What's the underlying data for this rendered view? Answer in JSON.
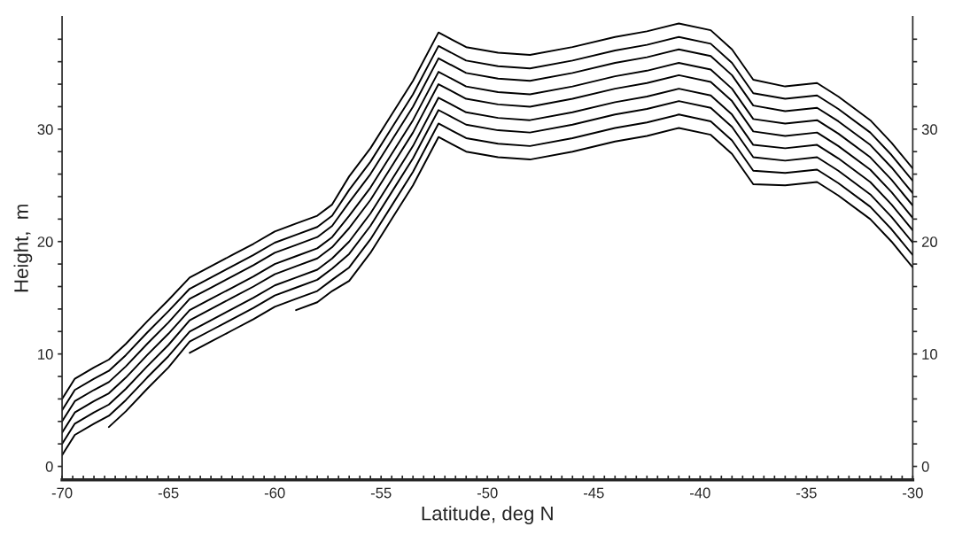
{
  "chart_data": {
    "type": "line",
    "xlabel": "Latitude, deg N",
    "ylabel": "Height,  m",
    "x": [
      -70,
      -69.4,
      -68.5,
      -67.8,
      -67,
      -66,
      -65,
      -64,
      -63,
      -62,
      -61,
      -60,
      -59,
      -58,
      -57.3,
      -56.5,
      -55.5,
      -54.5,
      -53.5,
      -52.3,
      -51,
      -49.5,
      -48,
      -46,
      -44,
      -42.5,
      -41,
      -39.5,
      -38.5,
      -37.5,
      -36,
      -34.5,
      -33.5,
      -32,
      -31,
      -30
    ],
    "series": [
      {
        "color": "#000000",
        "values": [
          null,
          null,
          null,
          null,
          null,
          null,
          null,
          null,
          null,
          null,
          null,
          null,
          13.9,
          14.6,
          15.6,
          16.5,
          19.0,
          22.0,
          25.0,
          29.3,
          28.0,
          27.5,
          27.3,
          28.0,
          28.9,
          29.4,
          30.1,
          29.5,
          27.8,
          25.1,
          25.0,
          25.3,
          24.1,
          22.0,
          20.0,
          17.7
        ]
      },
      {
        "color": "#000000",
        "values": [
          null,
          null,
          null,
          null,
          null,
          null,
          null,
          10.1,
          11.1,
          12.1,
          13.1,
          14.2,
          14.9,
          15.6,
          16.6,
          17.7,
          20.2,
          23.2,
          26.2,
          30.5,
          29.2,
          28.7,
          28.5,
          29.2,
          30.1,
          30.6,
          31.3,
          30.7,
          29.0,
          26.3,
          26.1,
          26.4,
          25.2,
          23.1,
          21.1,
          18.8
        ]
      },
      {
        "color": "#000000",
        "values": [
          null,
          null,
          null,
          3.5,
          4.9,
          6.9,
          8.8,
          11.1,
          12.1,
          13.1,
          14.1,
          15.2,
          15.9,
          16.6,
          17.6,
          18.9,
          21.4,
          24.4,
          27.4,
          31.7,
          30.4,
          29.9,
          29.7,
          30.4,
          31.3,
          31.8,
          32.5,
          31.9,
          30.2,
          27.5,
          27.2,
          27.5,
          26.3,
          24.2,
          22.2,
          19.9
        ]
      },
      {
        "color": "#000000",
        "values": [
          1.0,
          2.8,
          3.8,
          4.5,
          5.9,
          7.9,
          9.8,
          12.0,
          13.0,
          14.0,
          15.0,
          16.1,
          16.8,
          17.5,
          18.5,
          20.0,
          22.5,
          25.5,
          28.5,
          32.8,
          31.5,
          31.0,
          30.8,
          31.5,
          32.4,
          32.9,
          33.6,
          33.0,
          31.3,
          28.6,
          28.3,
          28.6,
          27.4,
          25.3,
          23.3,
          21.0
        ]
      },
      {
        "color": "#000000",
        "values": [
          2.0,
          3.8,
          4.8,
          5.5,
          6.9,
          8.9,
          10.8,
          13.0,
          14.0,
          15.0,
          16.0,
          17.1,
          17.8,
          18.5,
          19.5,
          21.2,
          23.7,
          26.7,
          29.7,
          34.0,
          32.7,
          32.2,
          32.0,
          32.7,
          33.6,
          34.1,
          34.8,
          34.2,
          32.5,
          29.8,
          29.4,
          29.7,
          28.5,
          26.4,
          24.4,
          22.1
        ]
      },
      {
        "color": "#000000",
        "values": [
          3.0,
          4.8,
          5.8,
          6.5,
          7.9,
          9.9,
          11.8,
          13.9,
          14.9,
          15.9,
          16.9,
          18.0,
          18.7,
          19.4,
          20.4,
          22.3,
          24.8,
          27.8,
          30.8,
          35.1,
          33.8,
          33.3,
          33.1,
          33.8,
          34.7,
          35.2,
          35.9,
          35.3,
          33.6,
          30.9,
          30.5,
          30.8,
          29.6,
          27.5,
          25.5,
          23.2
        ]
      },
      {
        "color": "#000000",
        "values": [
          4.0,
          5.8,
          6.8,
          7.5,
          8.9,
          10.9,
          12.8,
          14.9,
          15.9,
          16.9,
          17.9,
          19.0,
          19.7,
          20.4,
          21.4,
          23.5,
          26.0,
          29.0,
          32.0,
          36.3,
          35.0,
          34.5,
          34.3,
          35.0,
          35.9,
          36.4,
          37.1,
          36.5,
          34.8,
          32.1,
          31.6,
          31.9,
          30.7,
          28.6,
          26.6,
          24.3
        ]
      },
      {
        "color": "#000000",
        "values": [
          5.0,
          6.8,
          7.8,
          8.5,
          9.9,
          11.9,
          13.8,
          15.8,
          16.8,
          17.8,
          18.8,
          19.9,
          20.6,
          21.3,
          22.3,
          24.6,
          27.1,
          30.1,
          33.1,
          37.4,
          36.1,
          35.6,
          35.4,
          36.1,
          37.0,
          37.5,
          38.2,
          37.6,
          35.9,
          33.2,
          32.7,
          33.0,
          31.8,
          29.7,
          27.7,
          25.4
        ]
      },
      {
        "color": "#000000",
        "values": [
          6.0,
          7.8,
          8.8,
          9.5,
          10.9,
          12.9,
          14.8,
          16.8,
          17.8,
          18.8,
          19.8,
          20.9,
          21.6,
          22.3,
          23.3,
          25.8,
          28.3,
          31.3,
          34.3,
          38.6,
          37.3,
          36.8,
          36.6,
          37.3,
          38.2,
          38.7,
          39.4,
          38.8,
          37.1,
          34.4,
          33.8,
          34.1,
          32.9,
          30.8,
          28.8,
          26.5
        ]
      }
    ],
    "xlim": [
      -70,
      -30
    ],
    "ylim": [
      -1.2,
      40
    ],
    "y2lim": [
      -1.2,
      40
    ],
    "xticks": [
      -70,
      {
        "value": -69.5,
        "label": null
      },
      {
        "value": -69,
        "label": null
      },
      {
        "value": -68.5,
        "label": null
      },
      {
        "value": -68,
        "label": null
      },
      {
        "value": -67.5,
        "label": null
      },
      {
        "value": -67,
        "label": null
      },
      {
        "value": -66.5,
        "label": null
      },
      {
        "value": -66,
        "label": null
      },
      {
        "value": -65.5,
        "label": null
      },
      -65,
      {
        "value": -64.5,
        "label": null
      },
      {
        "value": -64,
        "label": null
      },
      {
        "value": -63.5,
        "label": null
      },
      {
        "value": -63,
        "label": null
      },
      {
        "value": -62.5,
        "label": null
      },
      {
        "value": -62,
        "label": null
      },
      {
        "value": -61.5,
        "label": null
      },
      {
        "value": -61,
        "label": null
      },
      {
        "value": -60.5,
        "label": null
      },
      -60,
      {
        "value": -59.5,
        "label": null
      },
      {
        "value": -59,
        "label": null
      },
      {
        "value": -58.5,
        "label": null
      },
      {
        "value": -58,
        "label": null
      },
      {
        "value": -57.5,
        "label": null
      },
      {
        "value": -57,
        "label": null
      },
      {
        "value": -56.5,
        "label": null
      },
      {
        "value": -56,
        "label": null
      },
      {
        "value": -55.5,
        "label": null
      },
      -55,
      {
        "value": -54.5,
        "label": null
      },
      {
        "value": -54,
        "label": null
      },
      {
        "value": -53.5,
        "label": null
      },
      {
        "value": -53,
        "label": null
      },
      {
        "value": -52.5,
        "label": null
      },
      {
        "value": -52,
        "label": null
      },
      {
        "value": -51.5,
        "label": null
      },
      {
        "value": -51,
        "label": null
      },
      {
        "value": -50.5,
        "label": null
      },
      -50,
      {
        "value": -49.5,
        "label": null
      },
      {
        "value": -49,
        "label": null
      },
      {
        "value": -48.5,
        "label": null
      },
      {
        "value": -48,
        "label": null
      },
      {
        "value": -47.5,
        "label": null
      },
      {
        "value": -47,
        "label": null
      },
      {
        "value": -46.5,
        "label": null
      },
      {
        "value": -46,
        "label": null
      },
      {
        "value": -45.5,
        "label": null
      },
      -45,
      {
        "value": -44.5,
        "label": null
      },
      {
        "value": -44,
        "label": null
      },
      {
        "value": -43.5,
        "label": null
      },
      {
        "value": -43,
        "label": null
      },
      {
        "value": -42.5,
        "label": null
      },
      {
        "value": -42,
        "label": null
      },
      {
        "value": -41.5,
        "label": null
      },
      {
        "value": -41,
        "label": null
      },
      {
        "value": -40.5,
        "label": null
      },
      -40,
      {
        "value": -39.5,
        "label": null
      },
      {
        "value": -39,
        "label": null
      },
      {
        "value": -38.5,
        "label": null
      },
      {
        "value": -38,
        "label": null
      },
      {
        "value": -37.5,
        "label": null
      },
      {
        "value": -37,
        "label": null
      },
      {
        "value": -36.5,
        "label": null
      },
      {
        "value": -36,
        "label": null
      },
      {
        "value": -35.5,
        "label": null
      },
      -35,
      {
        "value": -34.5,
        "label": null
      },
      {
        "value": -34,
        "label": null
      },
      {
        "value": -33.5,
        "label": null
      },
      {
        "value": -33,
        "label": null
      },
      {
        "value": -32.5,
        "label": null
      },
      {
        "value": -32,
        "label": null
      },
      {
        "value": -31.5,
        "label": null
      },
      {
        "value": -31,
        "label": null
      },
      {
        "value": -30.5,
        "label": null
      },
      -30
    ],
    "yticks": [
      0,
      {
        "value": 2,
        "label": null
      },
      {
        "value": 4,
        "label": null
      },
      {
        "value": 6,
        "label": null
      },
      {
        "value": 8,
        "label": null
      },
      10,
      {
        "value": 12,
        "label": null
      },
      {
        "value": 14,
        "label": null
      },
      {
        "value": 16,
        "label": null
      },
      {
        "value": 18,
        "label": null
      },
      20,
      {
        "value": 22,
        "label": null
      },
      {
        "value": 24,
        "label": null
      },
      {
        "value": 26,
        "label": null
      },
      {
        "value": 28,
        "label": null
      },
      30,
      {
        "value": 32,
        "label": null
      },
      {
        "value": 34,
        "label": null
      },
      {
        "value": 36,
        "label": null
      },
      {
        "value": 38,
        "label": null
      }
    ],
    "y2ticks": [
      0,
      {
        "value": 2,
        "label": null
      },
      {
        "value": 4,
        "label": null
      },
      {
        "value": 6,
        "label": null
      },
      {
        "value": 8,
        "label": null
      },
      10,
      {
        "value": 12,
        "label": null
      },
      {
        "value": 14,
        "label": null
      },
      {
        "value": 16,
        "label": null
      },
      {
        "value": 18,
        "label": null
      },
      20,
      {
        "value": 22,
        "label": null
      },
      {
        "value": 24,
        "label": null
      },
      {
        "value": 26,
        "label": null
      },
      {
        "value": 28,
        "label": null
      },
      30,
      {
        "value": 32,
        "label": null
      },
      {
        "value": 34,
        "label": null
      },
      {
        "value": 36,
        "label": null
      },
      {
        "value": 38,
        "label": null
      }
    ],
    "grid": false,
    "legend": false,
    "marker": "none",
    "line_style": "solid"
  }
}
